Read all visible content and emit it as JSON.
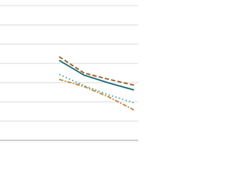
{
  "chart_data": {
    "type": "line",
    "categories": [
      null,
      null,
      null,
      null
    ],
    "ylim": [
      0,
      70
    ],
    "yticks": [
      0,
      10,
      20,
      30,
      40,
      50,
      60,
      70
    ],
    "grid": true,
    "series": [
      {
        "color": "#a0622d",
        "dash": "6,3",
        "values": [
          43.5,
          35.0,
          31.7,
          28.7
        ]
      },
      {
        "color": "#1d6e74",
        "dash": "none",
        "values": [
          41.6,
          33.9,
          29.8,
          26.2
        ]
      },
      {
        "color": "#5fb3b3",
        "dash": "2,3",
        "values": [
          34.3,
          28.4,
          23.6,
          19.5
        ]
      },
      {
        "color": "#c08a3e",
        "dash": "6,2,2,2",
        "values": [
          31.7,
          28.0,
          22.5,
          15.8
        ]
      }
    ]
  }
}
